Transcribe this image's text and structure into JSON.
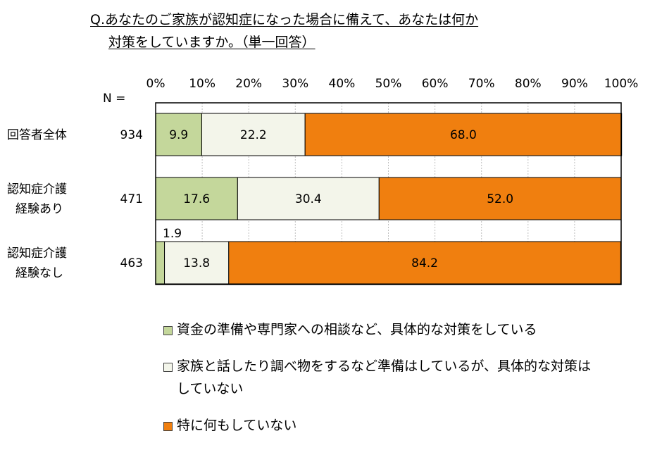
{
  "title": {
    "line1": "Q.あなたのご家族が認知症になった場合に備えて、あなたは何か",
    "line2": "対策をしていますか。（単一回答）"
  },
  "n_label": "N =",
  "chart_data": {
    "type": "bar",
    "orientation": "horizontal",
    "stacked": "100%",
    "categories": [
      [
        "回答者全体"
      ],
      [
        "認知症介護",
        "経験あり"
      ],
      [
        "認知症介護",
        "経験なし"
      ]
    ],
    "n": [
      "934",
      "471",
      "463"
    ],
    "x_ticks": [
      "0%",
      "10%",
      "20%",
      "30%",
      "40%",
      "50%",
      "60%",
      "70%",
      "80%",
      "90%",
      "100%"
    ],
    "xlim": [
      0,
      100
    ],
    "grid": true,
    "series": [
      {
        "name": "資金の準備や専門家への相談など、具体的な対策をしている",
        "color": "#c4d79b",
        "values": [
          9.9,
          17.6,
          1.9
        ]
      },
      {
        "name": "家族と話したり調べ物をするなど準備はしているが、具体的な対策はしていない",
        "color": "#f3f5ea",
        "values": [
          22.2,
          30.4,
          13.8
        ]
      },
      {
        "name": "特に何もしていない",
        "color": "#f07f0f",
        "values": [
          68.0,
          52.0,
          84.2
        ]
      }
    ],
    "value_labels": [
      [
        "9.9",
        "22.2",
        "68.0"
      ],
      [
        "17.6",
        "30.4",
        "52.0"
      ],
      [
        "1.9",
        "13.8",
        "84.2"
      ]
    ],
    "legend_position": "bottom"
  }
}
